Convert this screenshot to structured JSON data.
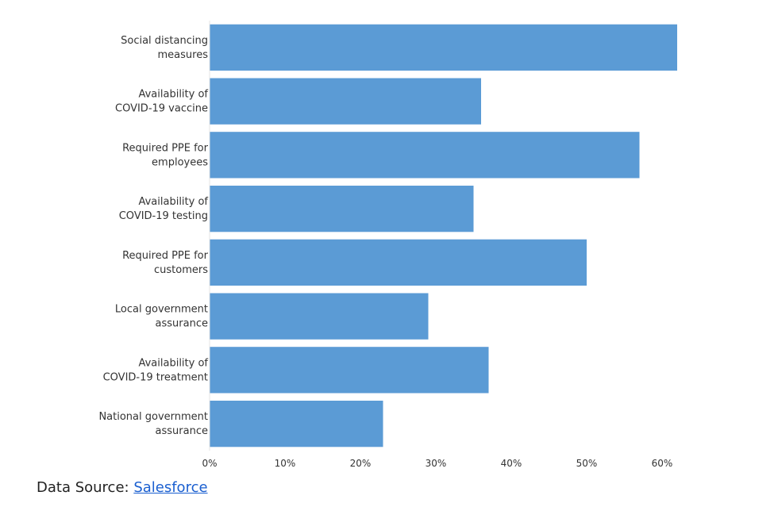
{
  "chart_data": {
    "type": "bar",
    "orientation": "horizontal",
    "categories": [
      "Social distancing measures",
      "Availability of COVID-19 vaccine",
      "Required PPE for employees",
      "Availability of COVID-19 testing",
      "Required PPE for customers",
      "Local government assurance",
      "Availability of COVID-19 treatment",
      "National government assurance"
    ],
    "category_label_lines": [
      [
        "Social distancing",
        "measures"
      ],
      [
        "Availability of",
        "COVID-19 vaccine"
      ],
      [
        "Required PPE for",
        "employees"
      ],
      [
        "Availability of",
        "COVID-19 testing"
      ],
      [
        "Required PPE for",
        "customers"
      ],
      [
        "Local government",
        "assurance"
      ],
      [
        "Availability of",
        "COVID-19 treatment"
      ],
      [
        "National government",
        "assurance"
      ]
    ],
    "values": [
      0.62,
      0.36,
      0.57,
      0.35,
      0.5,
      0.29,
      0.37,
      0.23
    ],
    "xlim": [
      0,
      0.62
    ],
    "xticks": [
      0,
      0.1,
      0.2,
      0.3,
      0.4,
      0.5,
      0.6
    ],
    "xtick_labels": [
      "0%",
      "10%",
      "20%",
      "30%",
      "40%",
      "50%",
      "60%"
    ],
    "title": "",
    "xlabel": "",
    "ylabel": "",
    "grid": false,
    "bar_color": "#5b9bd5"
  },
  "source": {
    "prefix": "Data Source: ",
    "link_text": "Salesforce"
  }
}
